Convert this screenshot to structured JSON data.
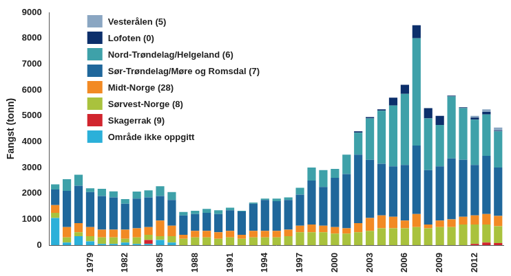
{
  "chart_data": {
    "type": "bar",
    "stacked": true,
    "grid": false,
    "legend": "upper left",
    "y_label": "Fangst (tonn)",
    "categories": [
      null,
      null,
      null,
      "1979",
      null,
      null,
      "1982",
      null,
      null,
      "1985",
      null,
      null,
      "1988",
      null,
      null,
      "1991",
      null,
      null,
      "1994",
      null,
      null,
      "1997",
      null,
      null,
      "2000",
      null,
      null,
      "2003",
      null,
      null,
      "2006",
      null,
      null,
      "2009",
      null,
      null,
      "2012",
      null,
      null
    ],
    "ylim": [
      0,
      9000
    ],
    "yticks": [
      0,
      1000,
      2000,
      3000,
      4000,
      5000,
      6000,
      7000,
      8000,
      9000
    ],
    "series": [
      {
        "name": "Område ikke oppgitt",
        "color": "#2bb0d9",
        "values": [
          1050,
          100,
          350,
          150,
          50,
          50,
          100,
          50,
          50,
          200,
          100,
          0,
          0,
          0,
          0,
          0,
          0,
          0,
          0,
          0,
          0,
          0,
          0,
          0,
          0,
          0,
          0,
          0,
          0,
          0,
          0,
          0,
          0,
          0,
          0,
          0,
          0,
          0,
          0
        ]
      },
      {
        "name": "Skagerrak (9)",
        "color": "#d1252e",
        "values": [
          0,
          0,
          0,
          0,
          0,
          0,
          0,
          0,
          150,
          0,
          0,
          0,
          0,
          0,
          0,
          0,
          0,
          0,
          0,
          0,
          0,
          0,
          0,
          0,
          0,
          0,
          0,
          0,
          0,
          0,
          0,
          0,
          0,
          0,
          0,
          0,
          50,
          100,
          80
        ]
      },
      {
        "name": "Sørvest-Norge (8)",
        "color": "#a9c23d",
        "values": [
          200,
          200,
          150,
          200,
          250,
          250,
          150,
          250,
          200,
          150,
          250,
          250,
          300,
          300,
          250,
          300,
          250,
          300,
          300,
          300,
          350,
          500,
          500,
          500,
          450,
          450,
          500,
          550,
          650,
          650,
          650,
          700,
          650,
          700,
          700,
          800,
          750,
          700,
          650
        ]
      },
      {
        "name": "Midt-Norge (28)",
        "color": "#f28a24",
        "values": [
          300,
          400,
          350,
          350,
          300,
          300,
          350,
          350,
          300,
          600,
          400,
          150,
          250,
          250,
          250,
          250,
          150,
          250,
          250,
          250,
          250,
          250,
          300,
          250,
          250,
          200,
          350,
          500,
          500,
          450,
          300,
          500,
          150,
          250,
          300,
          300,
          350,
          400,
          400
        ]
      },
      {
        "name": "Sør-Trøndelag/Møre og Romsdal (7)",
        "color": "#1f679b",
        "values": [
          600,
          1400,
          1450,
          1350,
          1300,
          1250,
          1000,
          1150,
          1150,
          950,
          1000,
          750,
          650,
          700,
          700,
          800,
          900,
          1050,
          1200,
          1150,
          1150,
          1200,
          1700,
          1500,
          1900,
          2100,
          2650,
          2250,
          2000,
          1950,
          2150,
          2650,
          2100,
          2100,
          2350,
          2200,
          1950,
          2250,
          1870
        ]
      },
      {
        "name": "Nord-Trøndelag/Helgeland (6)",
        "color": "#3ea1a9",
        "values": [
          200,
          450,
          420,
          150,
          280,
          230,
          180,
          270,
          270,
          380,
          300,
          130,
          130,
          150,
          150,
          100,
          30,
          50,
          50,
          100,
          100,
          270,
          500,
          650,
          350,
          750,
          850,
          1600,
          2050,
          2350,
          2750,
          4150,
          2000,
          1600,
          2400,
          2000,
          1750,
          1600,
          1400
        ]
      },
      {
        "name": "Lofoten (0)",
        "color": "#0c2f6b",
        "values": [
          0,
          0,
          0,
          0,
          0,
          0,
          0,
          0,
          0,
          0,
          0,
          0,
          0,
          0,
          0,
          0,
          0,
          0,
          0,
          0,
          0,
          0,
          0,
          0,
          0,
          0,
          50,
          50,
          50,
          300,
          350,
          500,
          400,
          350,
          30,
          30,
          80,
          100,
          30
        ]
      },
      {
        "name": "Vesterålen (5)",
        "color": "#8aa6c2",
        "values": [
          0,
          0,
          0,
          0,
          0,
          0,
          0,
          0,
          0,
          0,
          0,
          0,
          0,
          0,
          0,
          0,
          0,
          0,
          0,
          0,
          0,
          0,
          0,
          0,
          0,
          0,
          0,
          0,
          0,
          0,
          0,
          0,
          0,
          0,
          0,
          0,
          70,
          100,
          120
        ]
      }
    ]
  }
}
